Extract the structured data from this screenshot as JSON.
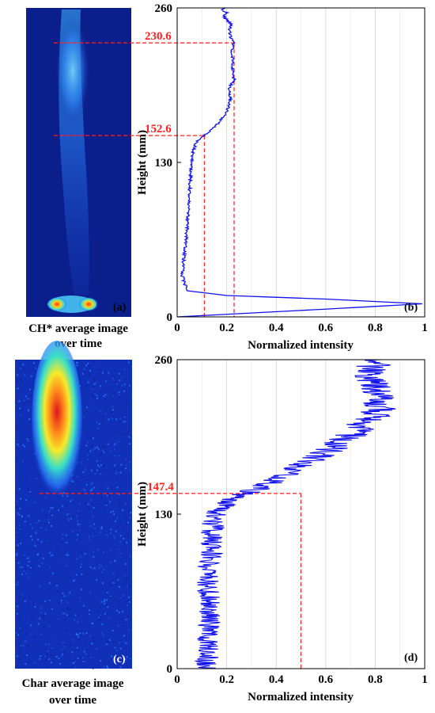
{
  "colors": {
    "line": "#1010ee",
    "annotation": "#ff2020",
    "grid": "#d0d0d0",
    "image_bg": "#0b1f8c"
  },
  "images": {
    "top": {
      "caption_line1": "CH* average image",
      "caption_line2": "over time",
      "panel_label": "(a)"
    },
    "bottom": {
      "caption_line1": "Char average image",
      "caption_line2": "over time",
      "panel_label": "(c)"
    }
  },
  "chart_data": [
    {
      "type": "line",
      "panel_label": "(b)",
      "xlabel": "Normalized intensity",
      "ylabel": "Height (mm)",
      "xlim": [
        0,
        1
      ],
      "ylim": [
        0,
        260
      ],
      "xticks": [
        "0",
        "0.2",
        "0.4",
        "0.6",
        "0.8",
        "1"
      ],
      "yticks": [
        "0",
        "130",
        "260"
      ],
      "grid": "vertical",
      "series": [
        {
          "x": [
            0.0,
            0.55,
            0.99,
            0.6,
            0.2,
            0.04,
            0.02,
            0.03,
            0.04,
            0.045,
            0.05,
            0.055,
            0.06,
            0.065,
            0.075,
            0.09,
            0.11,
            0.14,
            0.17,
            0.2,
            0.215,
            0.21,
            0.23,
            0.22,
            0.225,
            0.22,
            0.23,
            0.215,
            0.21,
            0.22,
            0.2,
            0.19,
            0.2,
            0.18,
            0.195
          ],
          "y": [
            0,
            6,
            11,
            15,
            18,
            22,
            35,
            55,
            75,
            90,
            105,
            120,
            130,
            140,
            146,
            150,
            153,
            158,
            164,
            172,
            182,
            192,
            200,
            210,
            218,
            224,
            230.6,
            236,
            242,
            246,
            250,
            253,
            256,
            258,
            260
          ]
        }
      ],
      "annotations": [
        {
          "label": "230.6",
          "x": 0.23,
          "y": 230.6
        },
        {
          "label": "152.6",
          "x": 0.11,
          "y": 152.6
        }
      ]
    },
    {
      "type": "line",
      "panel_label": "(d)",
      "xlabel": "Normalized intensity",
      "ylabel": "Height (mm)",
      "xlim": [
        0,
        1
      ],
      "ylim": [
        0,
        260
      ],
      "xticks": [
        "0",
        "0.2",
        "0.4",
        "0.6",
        "0.8",
        "1"
      ],
      "yticks": [
        "0",
        "130",
        "260"
      ],
      "grid": "vertical",
      "series": [
        {
          "x": [
            0.12,
            0.12,
            0.13,
            0.13,
            0.12,
            0.14,
            0.14,
            0.15,
            0.16,
            0.2,
            0.28,
            0.36,
            0.42,
            0.5,
            0.58,
            0.66,
            0.72,
            0.78,
            0.82,
            0.8,
            0.78,
            0.8
          ],
          "y": [
            0,
            20,
            40,
            60,
            80,
            100,
            115,
            125,
            132,
            140,
            147.4,
            155,
            162,
            172,
            180,
            190,
            200,
            210,
            220,
            235,
            248,
            260
          ]
        }
      ],
      "noise_amplitude": 0.07,
      "annotations": [
        {
          "label": "147.4",
          "x": 0.5,
          "y": 147.4
        }
      ]
    }
  ]
}
